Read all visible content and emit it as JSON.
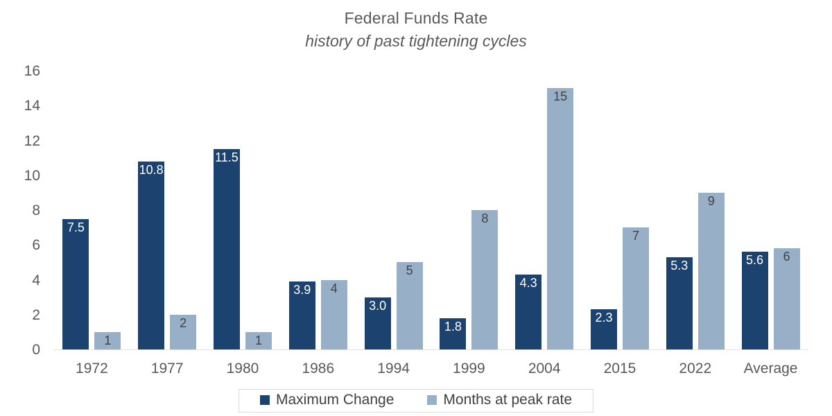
{
  "chart_data": {
    "type": "bar",
    "title": "Federal Funds Rate",
    "subtitle": "history of past tightening cycles",
    "categories": [
      "1972",
      "1977",
      "1980",
      "1986",
      "1994",
      "1999",
      "2004",
      "2015",
      "2022",
      "Average"
    ],
    "series": [
      {
        "name": "Maximum Change",
        "color": "#1c4370",
        "label_color": "#ffffff",
        "values": [
          7.5,
          10.8,
          11.5,
          3.9,
          3.0,
          1.8,
          4.3,
          2.3,
          5.3,
          5.6
        ],
        "labels": [
          "7.5",
          "10.8",
          "11.5",
          "3.9",
          "3.0",
          "1.8",
          "4.3",
          "2.3",
          "5.3",
          "5.6"
        ]
      },
      {
        "name": "Months at peak rate",
        "color": "#97b0c8",
        "label_color": "#404040",
        "values": [
          1,
          2,
          1,
          4,
          5,
          8,
          15,
          7,
          9,
          5.8
        ],
        "labels": [
          "1",
          "2",
          "1",
          "4",
          "5",
          "8",
          "15",
          "7",
          "9",
          "6"
        ]
      }
    ],
    "xlabel": "",
    "ylabel": "",
    "ylim": [
      0,
      16
    ],
    "yticks": [
      0,
      2,
      4,
      6,
      8,
      10,
      12,
      14,
      16
    ],
    "grid": false,
    "legend_position": "bottom",
    "axis_text_color": "#595959",
    "baseline_color": "#e2e2e2"
  }
}
